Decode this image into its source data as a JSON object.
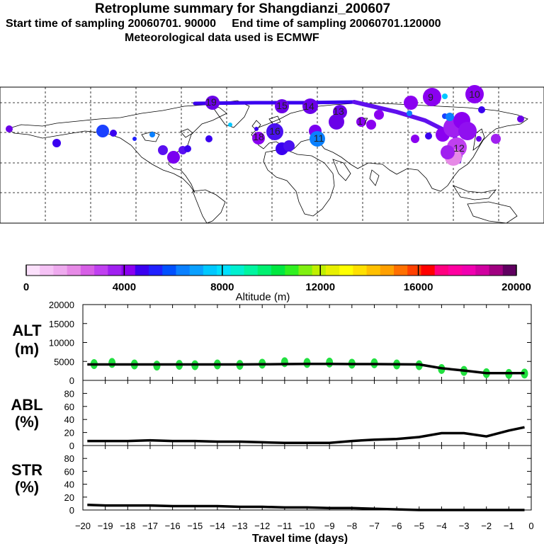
{
  "header": {
    "title": "Retroplume summary for Shangdianzi_200607",
    "sampling_line": "Start time of sampling 20060701. 90000     End time of sampling 20060701.120000",
    "met_line": "Meteorological data used is ECMWF"
  },
  "colorbar": {
    "label": "Altitude (m)",
    "ticks": [
      "0",
      "4000",
      "8000",
      "12000",
      "16000",
      "20000"
    ],
    "colors": [
      "#fbe0fb",
      "#f5c2f5",
      "#eeaaee",
      "#e68ae6",
      "#d75fe6",
      "#c040f0",
      "#a020f0",
      "#8a00f0",
      "#3a00f0",
      "#2020ff",
      "#0050ff",
      "#0a80ff",
      "#0aa0ff",
      "#00c8ff",
      "#00e0ff",
      "#00f0d0",
      "#00f5a0",
      "#00f070",
      "#00e840",
      "#30f020",
      "#80f010",
      "#c0f000",
      "#e8f000",
      "#ffff00",
      "#ffe000",
      "#ffc000",
      "#ffa000",
      "#ff7000",
      "#ff4000",
      "#ff0000",
      "#ff0080",
      "#ff00a0",
      "#f000b0",
      "#d000a0",
      "#a00080",
      "#600060"
    ]
  },
  "map": {
    "name": "world-map-retroplume",
    "labels": [
      {
        "t": "9",
        "c": "#8a00f0"
      },
      {
        "t": "10",
        "c": "#8a00f0"
      },
      {
        "t": "13",
        "c": "#8a00f0"
      },
      {
        "t": "14",
        "c": "#8a00f0"
      },
      {
        "t": "15",
        "c": "#8a00f0"
      },
      {
        "t": "16",
        "c": "#8a00f0"
      },
      {
        "t": "17",
        "c": "#8a00f0"
      },
      {
        "t": "18",
        "c": "#8a00f0"
      },
      {
        "t": "11",
        "c": "#0a80ff"
      },
      {
        "t": "12",
        "c": "#3a00f0"
      },
      {
        "t": "19",
        "c": "#8a00f0"
      }
    ]
  },
  "chart_data": [
    {
      "type": "line",
      "name": "ALT",
      "ylabel_line1": "ALT",
      "ylabel_line2": "(m)",
      "ylim": [
        0,
        20000
      ],
      "yticks": [
        "20000",
        "15000",
        "10000",
        "5000",
        "0"
      ],
      "x": [
        -19.8,
        -19,
        -18,
        -17,
        -16,
        -15,
        -14,
        -13,
        -12,
        -11,
        -10,
        -9,
        -8,
        -7,
        -6,
        -5,
        -4,
        -3,
        -2,
        -1,
        -0.3
      ],
      "values": [
        4200,
        4200,
        4200,
        4200,
        4200,
        4200,
        4200,
        4200,
        4250,
        4300,
        4350,
        4350,
        4300,
        4300,
        4250,
        4200,
        3200,
        2600,
        1900,
        1900,
        1900
      ],
      "marker_x": [
        -19.5,
        -18.7,
        -17.7,
        -16.7,
        -15.7,
        -15,
        -14,
        -13,
        -12,
        -11,
        -10,
        -9,
        -8,
        -7,
        -6,
        -5,
        -4,
        -3,
        -2,
        -1,
        -0.3
      ],
      "marker_values": [
        4300,
        4600,
        4200,
        3900,
        4100,
        4000,
        4200,
        4100,
        4400,
        4800,
        4600,
        4700,
        4400,
        4500,
        4200,
        4000,
        3000,
        2500,
        1900,
        1700,
        1800
      ],
      "marker_color": "#22e040"
    },
    {
      "type": "line",
      "name": "ABL",
      "ylabel_line1": "ABL",
      "ylabel_line2": "(%)",
      "ylim": [
        0,
        100
      ],
      "yticks": [
        "80",
        "60",
        "40",
        "20",
        "0"
      ],
      "x": [
        -19.8,
        -19,
        -18,
        -17,
        -16,
        -15,
        -14,
        -13,
        -12,
        -11,
        -10,
        -9,
        -8,
        -7,
        -6,
        -5,
        -4,
        -3,
        -2,
        -1,
        -0.3
      ],
      "values": [
        7,
        7,
        7,
        8,
        7,
        7,
        6,
        6,
        5,
        4,
        4,
        4,
        7,
        9,
        10,
        13,
        19,
        19,
        14,
        23,
        28
      ]
    },
    {
      "type": "line",
      "name": "STR",
      "ylabel_line1": "STR",
      "ylabel_line2": "(%)",
      "ylim": [
        0,
        100
      ],
      "yticks": [
        "80",
        "60",
        "40",
        "20",
        "0"
      ],
      "x": [
        -19.8,
        -19,
        -18,
        -17,
        -16,
        -15,
        -14,
        -13,
        -12,
        -11,
        -10,
        -9,
        -8,
        -7,
        -6,
        -5,
        -4,
        -3,
        -2,
        -1,
        -0.3
      ],
      "values": [
        8,
        7,
        7,
        7,
        6,
        6,
        6,
        5,
        5,
        4,
        4,
        3,
        3,
        2,
        1,
        0,
        0,
        0,
        0,
        0,
        0
      ],
      "xlabel": "Travel time (days)",
      "xticks": [
        "−20",
        "−19",
        "−18",
        "−17",
        "−16",
        "−15",
        "−14",
        "−13",
        "−12",
        "−11",
        "−10",
        "−9",
        "−8",
        "−7",
        "−6",
        "−5",
        "−4",
        "−3",
        "−2",
        "−1",
        "0"
      ]
    }
  ]
}
